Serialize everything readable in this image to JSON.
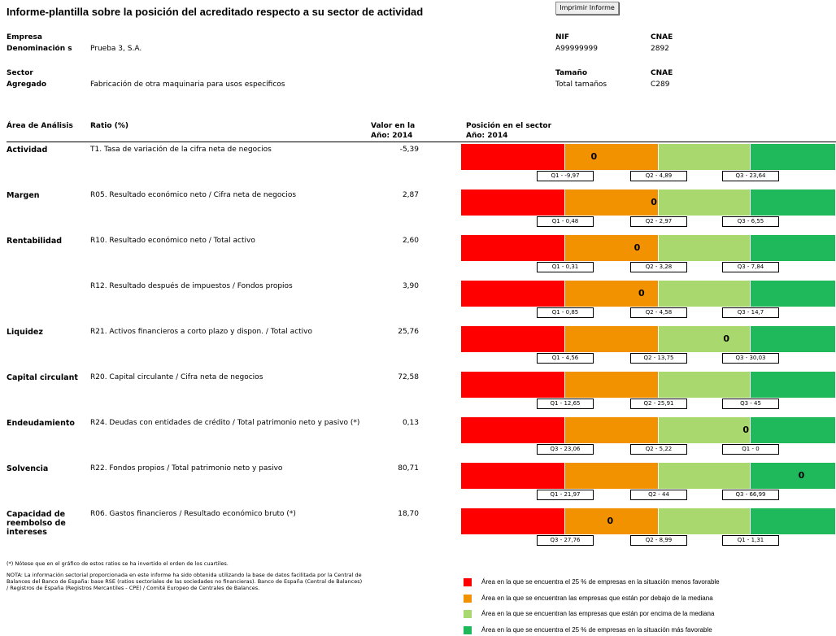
{
  "header": {
    "title": "Informe-plantilla sobre la posición del acreditado respecto a su sector de actividad",
    "print_button": "Imprimir Informe"
  },
  "company": {
    "label": "Empresa",
    "name_label": "Denominación s",
    "name": "Prueba 3, S.A.",
    "nif_label": "NIF",
    "nif": "A99999999",
    "cnae_label": "CNAE",
    "cnae": "2892"
  },
  "sector": {
    "label": "Sector",
    "aggregate_label": "Agregado",
    "aggregate": "Fabricación de otra maquinaria para usos específicos",
    "size_label": "Tamaño",
    "size": "Total tamaños",
    "cnae_label": "CNAE",
    "cnae": "C289"
  },
  "columns": {
    "area": "Área de Análisis",
    "ratio": "Ratio (%)",
    "value": "Valor en la",
    "value_year": "Año: 2014",
    "position": "Posición en el sector",
    "position_year": "Año: 2014"
  },
  "rows": [
    {
      "area": "Actividad",
      "ratio": "T1. Tasa de variación de la cifra neta de negocios",
      "value": "-5,39",
      "quartiles": [
        "Q1 - -9,97",
        "Q2 - 4,89",
        "Q3 - 23,64"
      ],
      "marker": "0"
    },
    {
      "area": "Margen",
      "ratio": "R05. Resultado económico neto / Cifra neta de negocios",
      "value": "2,87",
      "quartiles": [
        "Q1 - 0,48",
        "Q2 - 2,97",
        "Q3 - 6,55"
      ],
      "marker": "0"
    },
    {
      "area": "Rentabilidad",
      "ratio": "R10. Resultado económico neto / Total activo",
      "value": "2,60",
      "quartiles": [
        "Q1 - 0,31",
        "Q2 - 3,28",
        "Q3 - 7,84"
      ],
      "marker": "0"
    },
    {
      "ratio": "R12. Resultado después de impuestos / Fondos propios",
      "value": "3,90",
      "quartiles": [
        "Q1 - 0,85",
        "Q2 - 4,58",
        "Q3 - 14,7"
      ],
      "marker": "0"
    },
    {
      "area": "Liquidez",
      "ratio": "R21. Activos financieros a corto plazo y dispon. / Total activo",
      "value": "25,76",
      "quartiles": [
        "Q1 - 4,56",
        "Q2 - 13,75",
        "Q3 - 30,03"
      ],
      "marker": "0"
    },
    {
      "area": "Capital circulant",
      "ratio": "R20. Capital circulante / Cifra neta de negocios",
      "value": "72,58",
      "quartiles": [
        "Q1 - 12,65",
        "Q2 - 25,91",
        "Q3 - 45"
      ]
    },
    {
      "area": "Endeudamiento",
      "ratio": "R24. Deudas con entidades de crédito / Total patrimonio neto y pasivo (*)",
      "value": "0,13",
      "quartiles": [
        "Q3 - 23,06",
        "Q2 - 5,22",
        "Q1 - 0"
      ],
      "marker": "0"
    },
    {
      "area": "Solvencia",
      "ratio": "R22. Fondos propios / Total patrimonio neto y pasivo",
      "value": "80,71",
      "quartiles": [
        "Q1 - 21,97",
        "Q2 - 44",
        "Q3 - 66,99"
      ],
      "marker": "0"
    },
    {
      "area": "Capacidad de reembolso de intereses",
      "ratio": "R06. Gastos financieros / Resultado económico bruto (*)",
      "value": "18,70",
      "quartiles": [
        "Q3 - 27,76",
        "Q2 - 8,99",
        "Q1 - 1,31"
      ],
      "marker": "0"
    }
  ],
  "notes": [
    "(*) Nótese que en el gráfico de estos ratios se ha invertido el orden de los cuartiles.",
    "NOTA: La información sectorial proporcionada en este informe ha sido obtenida utilizando la base de datos facilitada por la Central de Balances del Banco de España: base RSE (ratios sectoriales de las sociedades no financieras). Banco de España (Central de Balances) / Registros de España (Registros Mercantiles - CPE) / Comité Europeo de Centrales de Balances."
  ],
  "legend": [
    "Área en la que se encuentra el 25 % de empresas en la situación menos favorable",
    "Área en la que se encuentran las empresas que están por debajo de la mediana",
    "Área en la que se encuentran las empresas que están por encima de la mediana",
    "Área en la que se encuentra el 25 % de empresas en la situación más favorable"
  ]
}
